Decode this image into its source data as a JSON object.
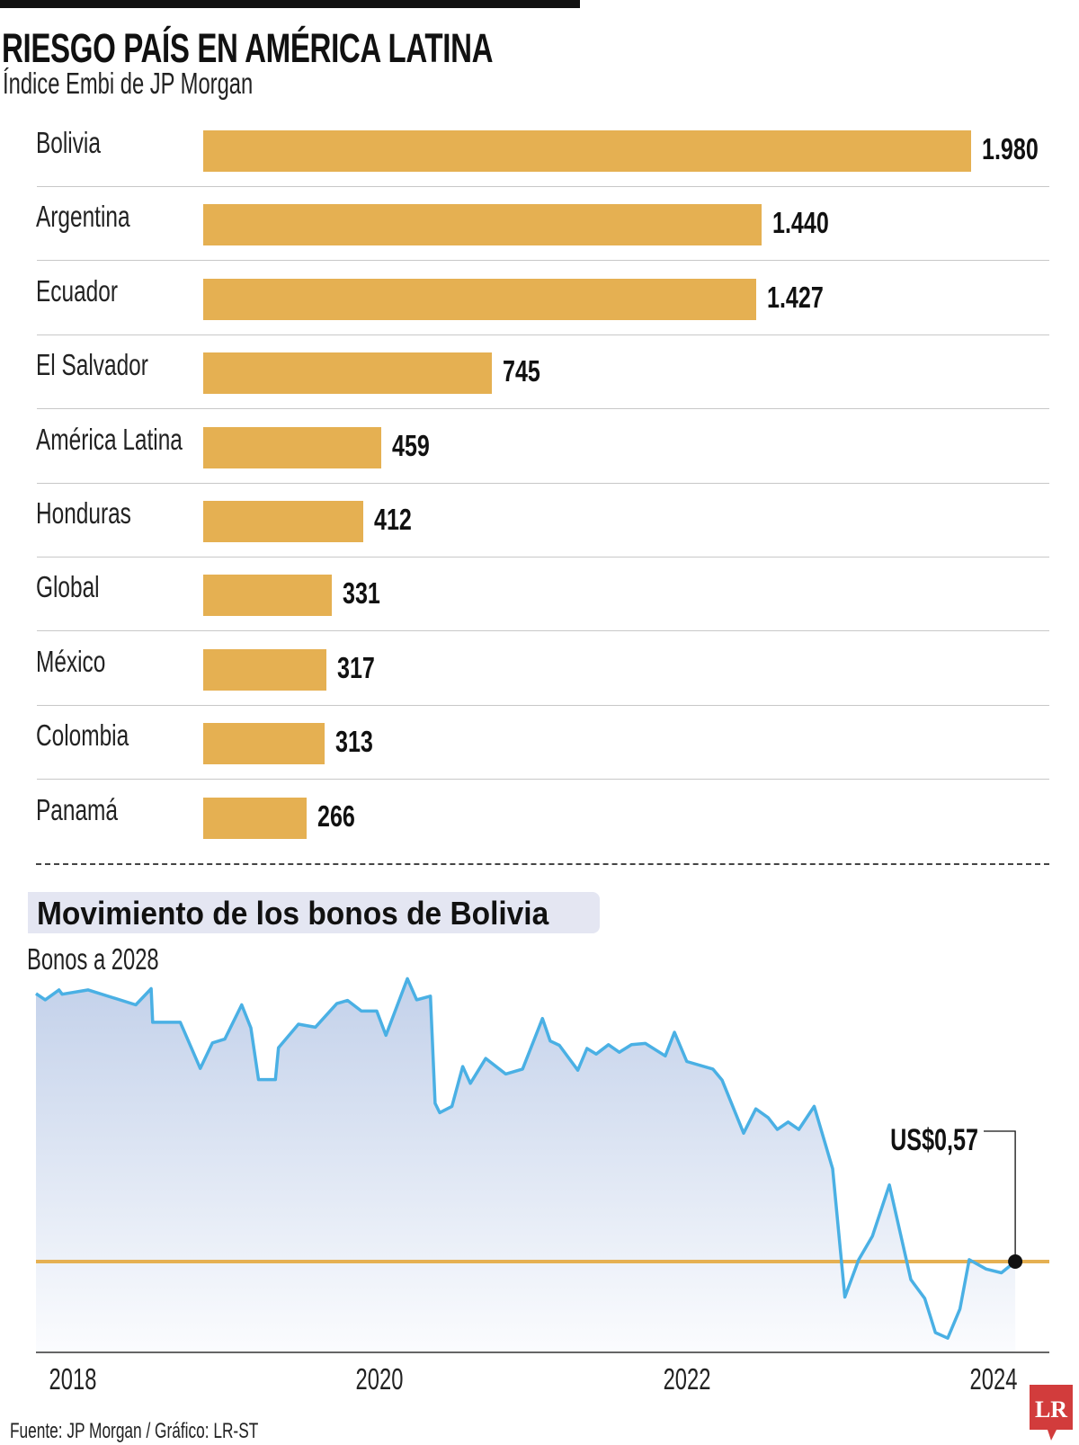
{
  "title": "RIESGO PAÍS EN AMÉRICA LATINA",
  "subtitle": "Índice Embi de JP Morgan",
  "colors": {
    "bar": "#e5b052",
    "line": "#4ab0e4",
    "reference_line": "#e5b052",
    "area_top": "#c3d1ea",
    "section_box": "#e4e6f2",
    "logo": "#d23c3c"
  },
  "chart_data": [
    {
      "type": "bar",
      "orientation": "horizontal",
      "title": "RIESGO PAÍS EN AMÉRICA LATINA",
      "subtitle": "Índice Embi de JP Morgan",
      "categories": [
        "Bolivia",
        "Argentina",
        "Ecuador",
        "El Salvador",
        "América Latina",
        "Honduras",
        "Global",
        "México",
        "Colombia",
        "Panamá"
      ],
      "values": [
        1980,
        1440,
        1427,
        745,
        459,
        412,
        331,
        317,
        313,
        266
      ],
      "value_labels": [
        "1.980",
        "1.440",
        "1.427",
        "745",
        "459",
        "412",
        "331",
        "317",
        "313",
        "266"
      ]
    },
    {
      "type": "area",
      "title": "Movimiento de los bonos de Bolivia",
      "subtitle": "Bonos a 2028",
      "x_ticks": [
        "2018",
        "2020",
        "2022",
        "2024"
      ],
      "grid": false,
      "reference_line": {
        "value": 0.57
      },
      "annotation": "US$0,57",
      "x": [
        2017.76,
        2017.82,
        2017.91,
        2017.93,
        2018.1,
        2018.41,
        2018.51,
        2018.52,
        2018.7,
        2018.83,
        2018.91,
        2018.99,
        2019.1,
        2019.16,
        2019.21,
        2019.32,
        2019.34,
        2019.47,
        2019.58,
        2019.72,
        2019.79,
        2019.88,
        2019.98,
        2020.04,
        2020.18,
        2020.24,
        2020.33,
        2020.36,
        2020.39,
        2020.47,
        2020.54,
        2020.59,
        2020.69,
        2020.82,
        2020.93,
        2021.06,
        2021.11,
        2021.17,
        2021.29,
        2021.35,
        2021.41,
        2021.49,
        2021.56,
        2021.64,
        2021.73,
        2021.86,
        2021.92,
        2022.0,
        2022.17,
        2022.23,
        2022.37,
        2022.45,
        2022.53,
        2022.59,
        2022.66,
        2022.73,
        2022.83,
        2022.95,
        2023.03,
        2023.12,
        2023.21,
        2023.32,
        2023.46,
        2023.55,
        2023.62,
        2023.7,
        2023.78,
        2023.84,
        2023.95,
        2024.05,
        2024.14
      ],
      "y": [
        1.0,
        0.99,
        1.006,
        0.999,
        1.006,
        0.982,
        1.008,
        0.954,
        0.954,
        0.88,
        0.921,
        0.927,
        0.982,
        0.945,
        0.862,
        0.862,
        0.913,
        0.951,
        0.946,
        0.984,
        0.989,
        0.972,
        0.972,
        0.933,
        1.024,
        0.99,
        0.996,
        0.824,
        0.809,
        0.819,
        0.883,
        0.856,
        0.896,
        0.871,
        0.879,
        0.96,
        0.924,
        0.917,
        0.877,
        0.912,
        0.903,
        0.918,
        0.906,
        0.918,
        0.92,
        0.9,
        0.938,
        0.891,
        0.879,
        0.861,
        0.776,
        0.815,
        0.801,
        0.782,
        0.794,
        0.782,
        0.819,
        0.719,
        0.513,
        0.573,
        0.611,
        0.693,
        0.541,
        0.511,
        0.456,
        0.447,
        0.494,
        0.573,
        0.558,
        0.552,
        0.57
      ]
    }
  ],
  "section": {
    "title": "Movimiento de los bonos de Bolivia",
    "subtitle": "Bonos a 2028"
  },
  "source": "Fuente: JP Morgan / Gráfico: LR-ST",
  "logo": "LR"
}
